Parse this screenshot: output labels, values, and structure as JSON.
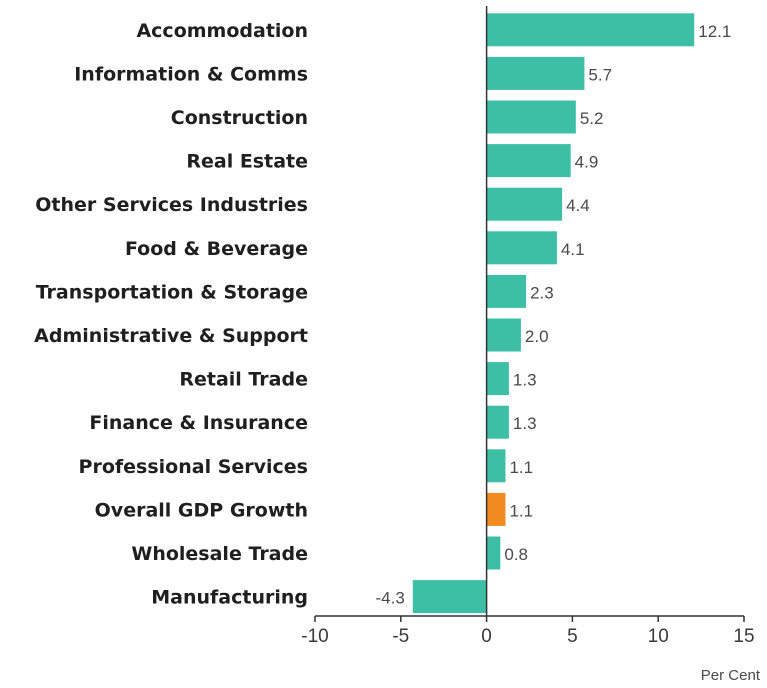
{
  "chart_data": {
    "type": "bar",
    "orientation": "horizontal",
    "categories": [
      "Accommodation",
      "Information & Comms",
      "Construction",
      "Real Estate",
      "Other Services Industries",
      "Food & Beverage",
      "Transportation & Storage",
      "Administrative & Support",
      "Retail Trade",
      "Finance & Insurance",
      "Professional Services",
      "Overall GDP Growth",
      "Wholesale Trade",
      "Manufacturing"
    ],
    "values": [
      12.1,
      5.7,
      5.2,
      4.9,
      4.4,
      4.1,
      2.3,
      2.0,
      1.3,
      1.3,
      1.1,
      1.1,
      0.8,
      -4.3
    ],
    "value_labels": [
      "12.1",
      "5.7",
      "5.2",
      "4.9",
      "4.4",
      "4.1",
      "2.3",
      "2.0",
      "1.3",
      "1.3",
      "1.1",
      "1.1",
      "0.8",
      "-4.3"
    ],
    "highlight_category": "Overall GDP Growth",
    "xlabel": "Per Cent",
    "xlim": [
      -10,
      15
    ],
    "xticks": [
      -10,
      -5,
      0,
      5,
      10,
      15
    ],
    "xtick_labels": [
      "-10",
      "-5",
      "0",
      "5",
      "10",
      "15"
    ],
    "grid": false,
    "legend": "none",
    "colors": {
      "bar": "#3dbfa6",
      "highlight": "#f28b1f",
      "axis": "#333333"
    }
  }
}
